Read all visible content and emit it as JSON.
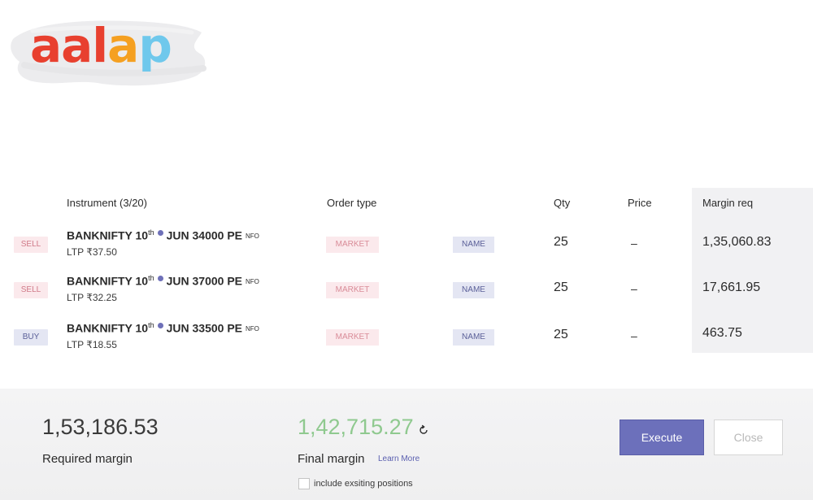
{
  "brand": {
    "logo_letters": [
      "a",
      "a",
      "l",
      "a",
      "p"
    ],
    "logo_colors": [
      "#e8402f",
      "#e8402f",
      "#e8402f",
      "#f5a021",
      "#6fc8ec"
    ]
  },
  "table": {
    "headers": {
      "instrument": "Instrument (3/20)",
      "order_type": "Order type",
      "qty": "Qty",
      "price": "Price",
      "margin": "Margin req"
    },
    "rows": [
      {
        "side": "SELL",
        "instrument": "BANKNIFTY 10",
        "sup": "th",
        "contract": "JUN 34000 PE",
        "exchange": "NFO",
        "ltp": "LTP ₹37.50",
        "order_type": "MARKET",
        "name": "NAME",
        "qty": "25",
        "price": "–",
        "margin": "1,35,060.83"
      },
      {
        "side": "SELL",
        "instrument": "BANKNIFTY 10",
        "sup": "th",
        "contract": "JUN 37000 PE",
        "exchange": "NFO",
        "ltp": "LTP ₹32.25",
        "order_type": "MARKET",
        "name": "NAME",
        "qty": "25",
        "price": "–",
        "margin": "17,661.95"
      },
      {
        "side": "BUY",
        "instrument": "BANKNIFTY 10",
        "sup": "th",
        "contract": "JUN 33500 PE",
        "exchange": "NFO",
        "ltp": "LTP ₹18.55",
        "order_type": "MARKET",
        "name": "NAME",
        "qty": "25",
        "price": "–",
        "margin": "463.75"
      }
    ]
  },
  "summary": {
    "required_margin_value": "1,53,186.53",
    "required_margin_label": "Required margin",
    "final_margin_value": "1,42,715.27",
    "final_margin_label": "Final margin",
    "learn_more": "Learn More",
    "include_positions_label": "include exsiting positions",
    "include_positions_checked": false
  },
  "actions": {
    "execute_label": "Execute",
    "close_label": "Close"
  },
  "colors": {
    "accent": "#6c70bb",
    "final_margin": "#8fc98f",
    "sell_bg": "#fbe9ec",
    "buy_bg": "#e4e6f3"
  },
  "icons": {
    "refresh": "refresh-icon",
    "dot": "instrument-dot-icon"
  }
}
